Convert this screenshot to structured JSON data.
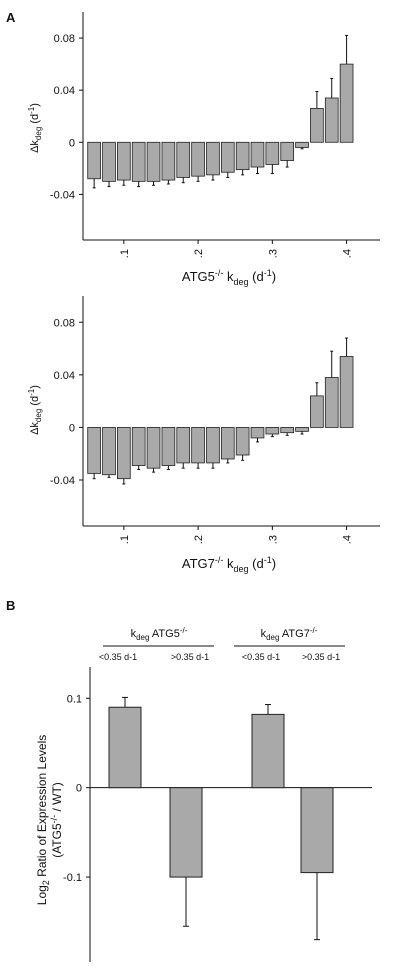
{
  "panels": {
    "a": {
      "label": "A"
    },
    "b": {
      "label": "B"
    }
  },
  "colors": {
    "bar_fill": "#a9a9a9",
    "bar_stroke": "#222222",
    "axis": "#111111"
  },
  "chart_data": [
    {
      "type": "bar",
      "ylabel": "Δk_deg (d-1)",
      "xlabel": "ATG5-/- k_deg (d-1)",
      "x_ticks": [
        0.1,
        0.2,
        0.3,
        0.4
      ],
      "y_ticks": [
        0.08,
        0.04,
        0,
        -0.04
      ],
      "xlim": [
        0.045,
        0.445
      ],
      "ylim": [
        -0.075,
        0.1
      ],
      "grid": false,
      "x": [
        0.06,
        0.08,
        0.1,
        0.12,
        0.14,
        0.16,
        0.18,
        0.2,
        0.22,
        0.24,
        0.26,
        0.28,
        0.3,
        0.32,
        0.34,
        0.36,
        0.38,
        0.4,
        0.42
      ],
      "values": [
        -0.028,
        -0.03,
        -0.029,
        -0.03,
        -0.03,
        -0.029,
        -0.027,
        -0.026,
        -0.025,
        -0.023,
        -0.021,
        -0.019,
        -0.017,
        -0.014,
        -0.004,
        0.026,
        0.034,
        0.06,
        null
      ],
      "errors": [
        0.007,
        0.004,
        0.004,
        0.004,
        0.003,
        0.003,
        0.004,
        0.004,
        0.004,
        0.004,
        0.004,
        0.005,
        0.007,
        0.005,
        0.001,
        0.013,
        0.015,
        0.022,
        null
      ]
    },
    {
      "type": "bar",
      "ylabel": "Δk_deg (d-1)",
      "xlabel": "ATG7-/- k_deg (d-1)",
      "x_ticks": [
        0.1,
        0.2,
        0.3,
        0.4
      ],
      "y_ticks": [
        0.08,
        0.04,
        0,
        -0.04
      ],
      "xlim": [
        0.045,
        0.445
      ],
      "ylim": [
        -0.075,
        0.1
      ],
      "grid": false,
      "x": [
        0.06,
        0.08,
        0.1,
        0.12,
        0.14,
        0.16,
        0.18,
        0.2,
        0.22,
        0.24,
        0.26,
        0.28,
        0.3,
        0.32,
        0.34,
        0.36,
        0.38,
        0.4,
        0.42
      ],
      "values": [
        -0.035,
        -0.036,
        -0.039,
        -0.029,
        -0.031,
        -0.029,
        -0.027,
        -0.027,
        -0.027,
        -0.024,
        -0.021,
        -0.008,
        -0.005,
        -0.004,
        -0.003,
        0.024,
        0.038,
        0.054,
        null
      ],
      "errors": [
        0.004,
        0.002,
        0.004,
        0.003,
        0.003,
        0.003,
        0.004,
        0.004,
        0.004,
        0.003,
        0.004,
        0.003,
        0.002,
        0.002,
        0.002,
        0.01,
        0.02,
        0.014,
        null
      ]
    },
    {
      "type": "bar",
      "ylabel": "Log2 Ratio of Expression Levels",
      "ylabel2": "(ATG5-/- / WT)",
      "groups": [
        "k_deg ATG5-/-",
        "k_deg ATG7-/-"
      ],
      "categories": [
        "<0.35 d-1",
        ">0.35 d-1",
        "<0.35 d-1",
        ">0.35 d-1"
      ],
      "values": [
        0.09,
        -0.1,
        0.082,
        -0.095
      ],
      "errors": [
        0.011,
        0.055,
        0.011,
        0.075
      ],
      "y_ticks": [
        0.1,
        0,
        -0.1
      ],
      "ylim": [
        -0.195,
        0.135
      ],
      "grid": false
    }
  ]
}
